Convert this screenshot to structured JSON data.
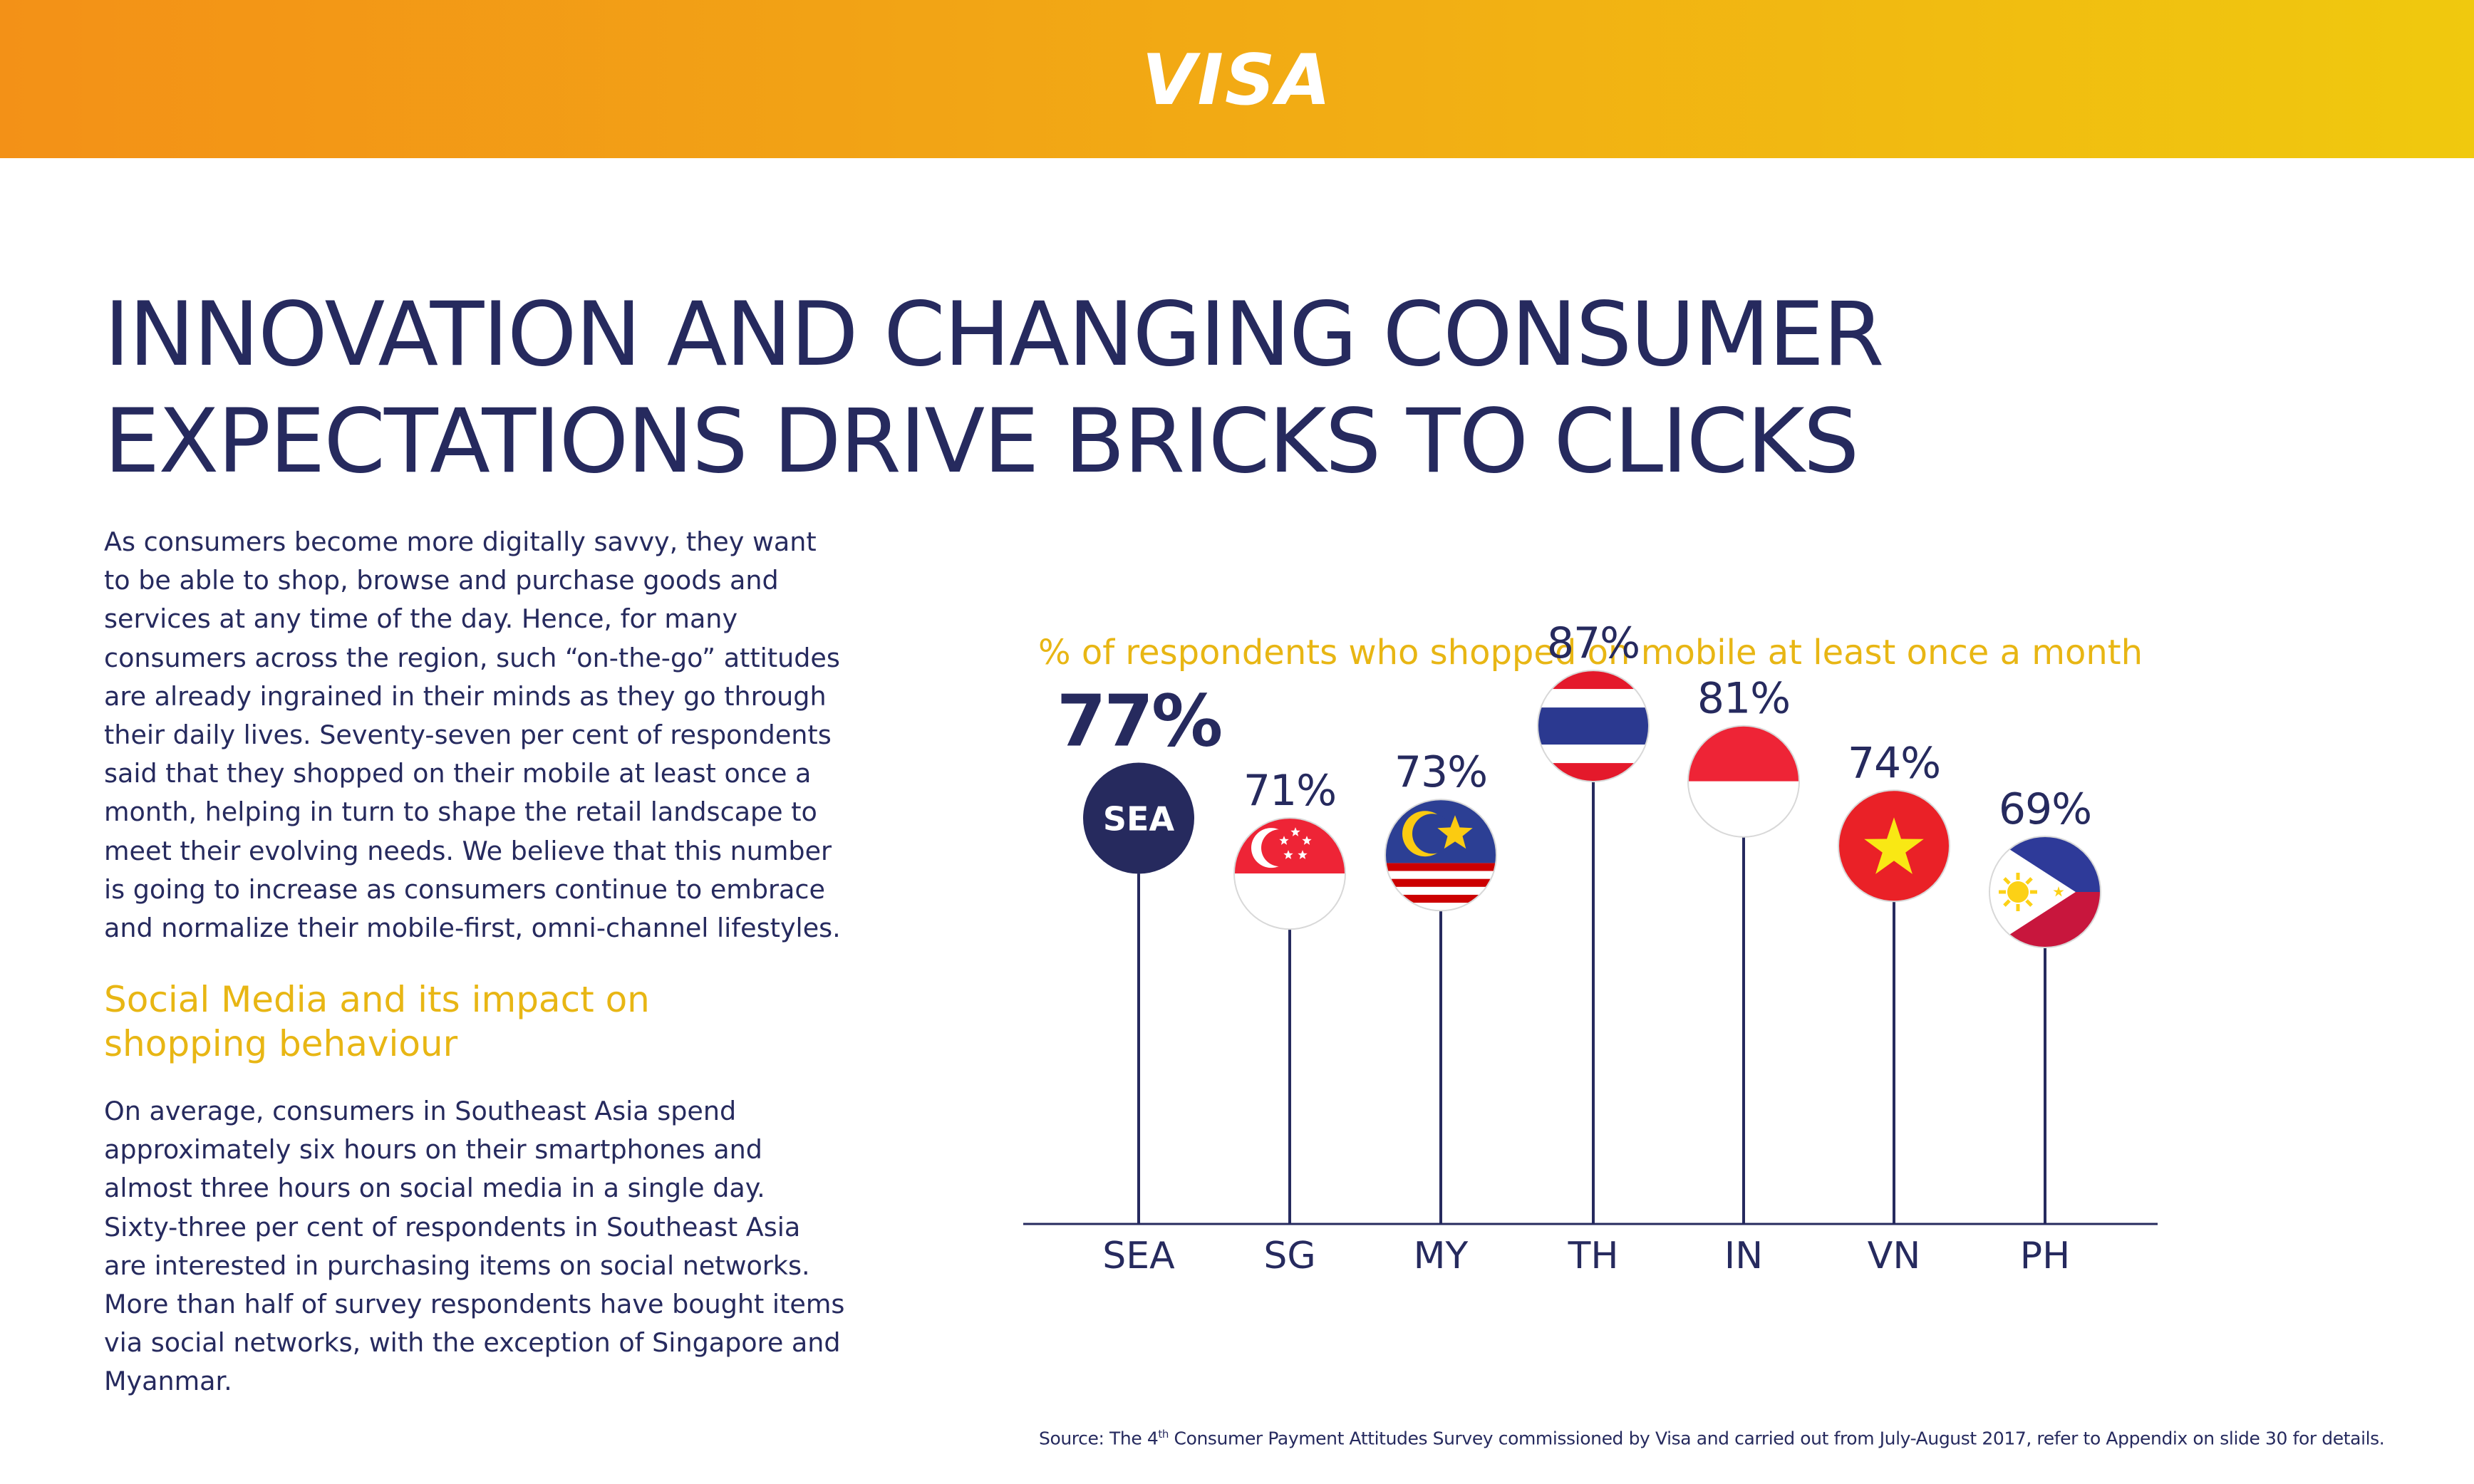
{
  "header": {
    "logo_text": "VISA"
  },
  "title": "INNOVATION AND CHANGING CONSUMER\nEXPECTATIONS DRIVE BRICKS TO CLICKS",
  "intro_paragraph": "As consumers become more digitally savvy, they want to be able to shop, browse and purchase goods and services at any time of the day. Hence, for many consumers across the region, such “on-the-go” attitudes are already ingrained in their minds as they go through their daily lives. Seventy-seven per cent of respondents said that they shopped on their mobile at least once a month, helping in turn to shape the retail landscape to meet their evolving needs. We believe that this number is going to increase as consumers continue to embrace and normalize their mobile-first, omni-channel lifestyles.",
  "section_heading": "Social Media and its impact on\nshopping behaviour",
  "social_paragraph": "On average, consumers in Southeast Asia spend approximately six hours on their smartphones and almost three hours on social media in a single day. Sixty-three per cent of respondents in Southeast Asia are interested in purchasing items on social networks. More than half of survey respondents have bought items via social networks, with the exception of Singapore and Myanmar.",
  "source": {
    "prefix": "Source: The 4",
    "superscript": "th",
    "suffix": " Consumer Payment Attitudes Survey commissioned by Visa and carried out from July-August 2017, refer to Appendix on slide 30 for details."
  },
  "colors": {
    "navy": "#262a5e",
    "accent_yellow": "#e8b614",
    "header_orange": "#f39117",
    "header_yellow": "#f0c90e"
  },
  "chart_data": {
    "type": "lollipop",
    "title": "% of respondents who shopped on mobile at least once a month",
    "categories": [
      "SEA",
      "SG",
      "MY",
      "TH",
      "IN",
      "VN",
      "PH"
    ],
    "values": [
      77,
      71,
      73,
      87,
      81,
      74,
      69
    ],
    "value_labels": [
      "77%",
      "71%",
      "73%",
      "87%",
      "81%",
      "74%",
      "69%"
    ],
    "highlight": "SEA",
    "markers": [
      "SEA-circle",
      "singapore-flag",
      "malaysia-flag",
      "thailand-flag",
      "indonesia-flag",
      "vietnam-flag",
      "philippines-flag"
    ],
    "sea_marker_label": "SEA",
    "grid": false,
    "legend": "none"
  }
}
